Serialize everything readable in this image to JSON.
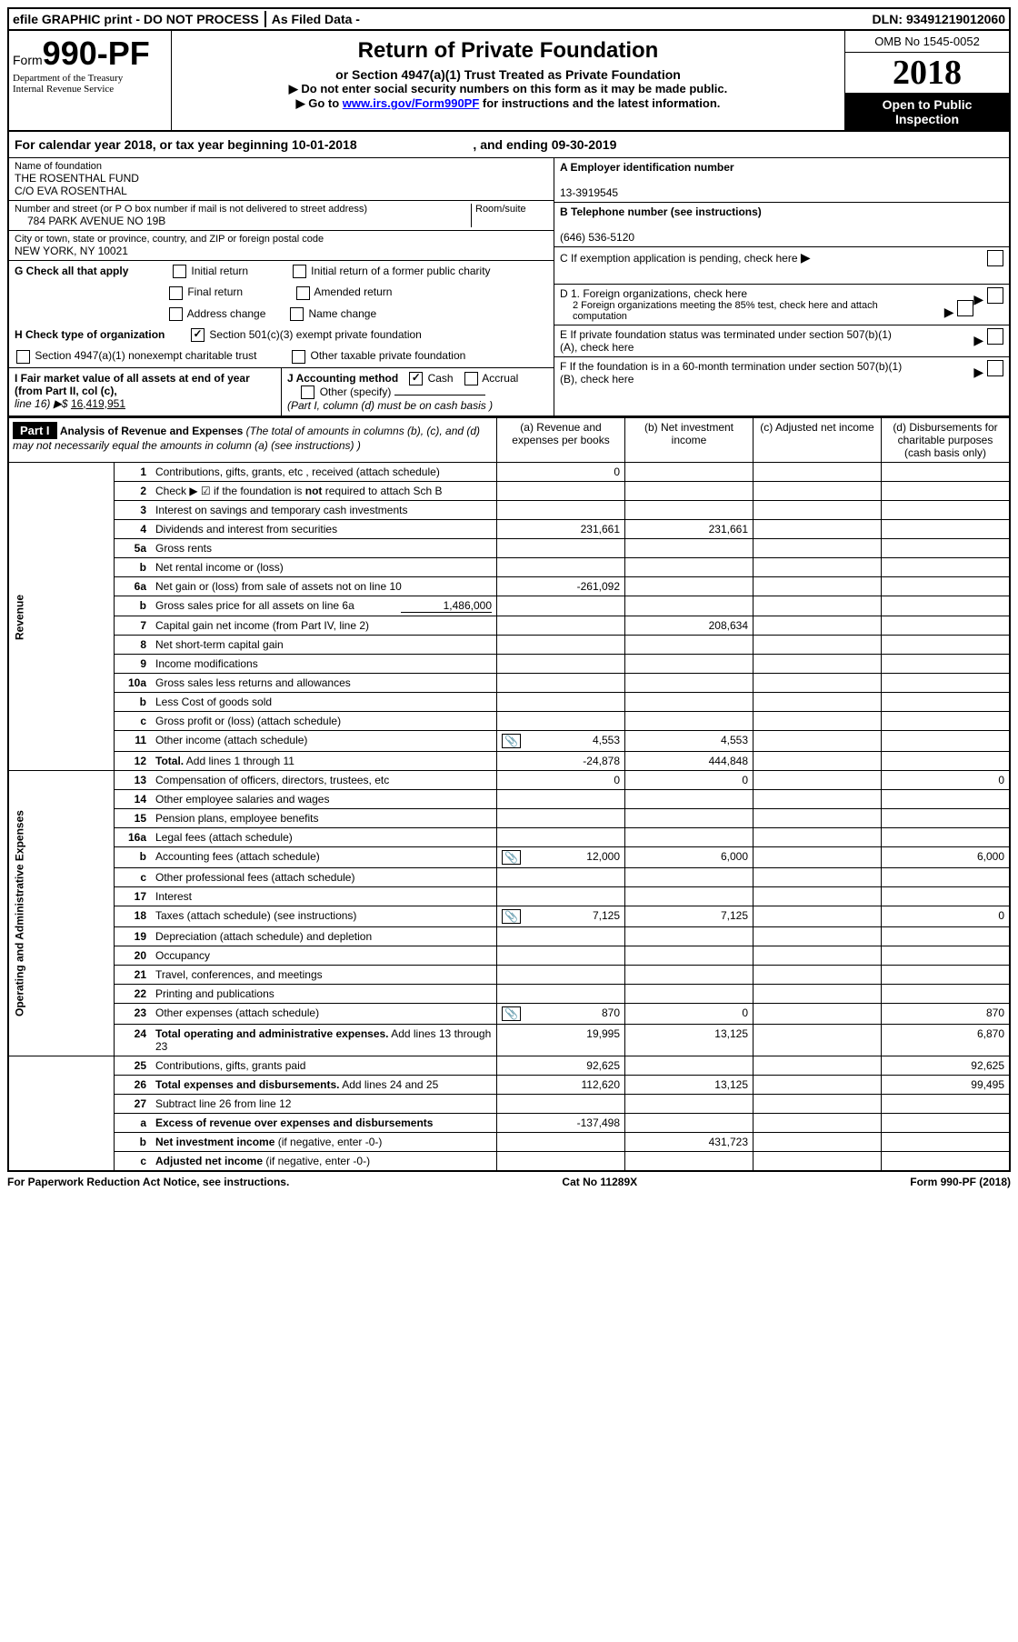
{
  "top": {
    "efile": "efile GRAPHIC print - DO NOT PROCESS",
    "asfiled": "As Filed Data -",
    "dln_label": "DLN:",
    "dln": "93491219012060"
  },
  "header": {
    "form_prefix": "Form",
    "form_number": "990-PF",
    "dept1": "Department of the Treasury",
    "dept2": "Internal Revenue Service",
    "title": "Return of Private Foundation",
    "subtitle": "or Section 4947(a)(1) Trust Treated as Private Foundation",
    "inst1": "▶ Do not enter social security numbers on this form as it may be made public.",
    "inst2_pre": "▶ Go to ",
    "inst2_link": "www.irs.gov/Form990PF",
    "inst2_post": " for instructions and the latest information.",
    "omb": "OMB No 1545-0052",
    "year": "2018",
    "insp1": "Open to Public",
    "insp2": "Inspection"
  },
  "calendar": {
    "text1": "For calendar year 2018, or tax year beginning 10-01-2018",
    "text2": ", and ending 09-30-2019"
  },
  "foundation": {
    "name_label": "Name of foundation",
    "name1": "THE ROSENTHAL FUND",
    "name2": "C/O EVA ROSENTHAL",
    "addr_label": "Number and street (or P O  box number if mail is not delivered to street address)",
    "room_label": "Room/suite",
    "addr": "784 PARK AVENUE NO 19B",
    "city_label": "City or town, state or province, country, and ZIP or foreign postal code",
    "city": "NEW YORK, NY  10021"
  },
  "right_info": {
    "a_label": "A Employer identification number",
    "a_val": "13-3919545",
    "b_label": "B Telephone number (see instructions)",
    "b_val": "(646) 536-5120",
    "c_label": "C  If exemption application is pending, check here",
    "d1": "D 1. Foreign organizations, check here",
    "d2": "2  Foreign organizations meeting the 85% test, check here and attach computation",
    "e": "E  If private foundation status was terminated under section 507(b)(1)(A), check here",
    "f": "F  If the foundation is in a 60-month termination under section 507(b)(1)(B), check here"
  },
  "checks": {
    "g": "G Check all that apply",
    "g1": "Initial return",
    "g2": "Initial return of a former public charity",
    "g3": "Final return",
    "g4": "Amended return",
    "g5": "Address change",
    "g6": "Name change",
    "h": "H Check type of organization",
    "h1": "Section 501(c)(3) exempt private foundation",
    "h2": "Section 4947(a)(1) nonexempt charitable trust",
    "h3": "Other taxable private foundation",
    "i1": "I Fair market value of all assets at end of year (from Part II, col  (c),",
    "i2": "line 16)  ▶$ ",
    "i_val": "16,419,951",
    "j": "J Accounting method",
    "j1": "Cash",
    "j2": "Accrual",
    "j3": "Other (specify)",
    "j_note": "(Part I, column (d) must be on cash basis )"
  },
  "part1": {
    "label": "Part I",
    "title": "Analysis of Revenue and Expenses",
    "note": " (The total of amounts in columns (b), (c), and (d) may not necessarily equal the amounts in column (a) (see instructions) )",
    "col_a": "(a)   Revenue and expenses per books",
    "col_b": "(b)  Net investment income",
    "col_c": "(c)  Adjusted net income",
    "col_d": "(d)  Disbursements for charitable purposes (cash basis only)"
  },
  "rows": [
    {
      "n": "1",
      "d": "Contributions, gifts, grants, etc , received (attach schedule)",
      "a": "0"
    },
    {
      "n": "2",
      "d": "Check  ▶ ☑ if the foundation is <b>not</b> required to attach Sch  B"
    },
    {
      "n": "3",
      "d": "Interest on savings and temporary cash investments"
    },
    {
      "n": "4",
      "d": "Dividends and interest from securities",
      "a": "231,661",
      "b": "231,661"
    },
    {
      "n": "5a",
      "d": "Gross rents"
    },
    {
      "n": "b",
      "d": "Net rental income or (loss)"
    },
    {
      "n": "6a",
      "d": "Net gain or (loss) from sale of assets not on line 10",
      "a": "-261,092"
    },
    {
      "n": "b",
      "d": "Gross sales price for all assets on line 6a",
      "inline": "1,486,000"
    },
    {
      "n": "7",
      "d": "Capital gain net income (from Part IV, line 2)",
      "b": "208,634"
    },
    {
      "n": "8",
      "d": "Net short-term capital gain"
    },
    {
      "n": "9",
      "d": "Income modifications"
    },
    {
      "n": "10a",
      "d": "Gross sales less returns and allowances"
    },
    {
      "n": "b",
      "d": "Less  Cost of goods sold"
    },
    {
      "n": "c",
      "d": "Gross profit or (loss) (attach schedule)"
    },
    {
      "n": "11",
      "d": "Other income (attach schedule)",
      "icon": true,
      "a": "4,553",
      "b": "4,553"
    },
    {
      "n": "12",
      "d": "<b>Total.</b> Add lines 1 through 11",
      "a": "-24,878",
      "b": "444,848"
    },
    {
      "n": "13",
      "d": "Compensation of officers, directors, trustees, etc",
      "a": "0",
      "b": "0",
      "dd": "0"
    },
    {
      "n": "14",
      "d": "Other employee salaries and wages"
    },
    {
      "n": "15",
      "d": "Pension plans, employee benefits"
    },
    {
      "n": "16a",
      "d": "Legal fees (attach schedule)"
    },
    {
      "n": "b",
      "d": "Accounting fees (attach schedule)",
      "icon": true,
      "a": "12,000",
      "b": "6,000",
      "dd": "6,000"
    },
    {
      "n": "c",
      "d": "Other professional fees (attach schedule)"
    },
    {
      "n": "17",
      "d": "Interest"
    },
    {
      "n": "18",
      "d": "Taxes (attach schedule) (see instructions)",
      "icon": true,
      "a": "7,125",
      "b": "7,125",
      "dd": "0"
    },
    {
      "n": "19",
      "d": "Depreciation (attach schedule) and depletion"
    },
    {
      "n": "20",
      "d": "Occupancy"
    },
    {
      "n": "21",
      "d": "Travel, conferences, and meetings"
    },
    {
      "n": "22",
      "d": "Printing and publications"
    },
    {
      "n": "23",
      "d": "Other expenses (attach schedule)",
      "icon": true,
      "a": "870",
      "b": "0",
      "dd": "870"
    },
    {
      "n": "24",
      "d": "<b>Total operating and administrative expenses.</b> Add lines 13 through 23",
      "a": "19,995",
      "b": "13,125",
      "dd": "6,870"
    },
    {
      "n": "25",
      "d": "Contributions, gifts, grants paid",
      "a": "92,625",
      "dd": "92,625"
    },
    {
      "n": "26",
      "d": "<b>Total expenses and disbursements.</b> Add lines 24 and 25",
      "a": "112,620",
      "b": "13,125",
      "dd": "99,495"
    },
    {
      "n": "27",
      "d": "Subtract line 26 from line 12"
    },
    {
      "n": "a",
      "d": "<b>Excess of revenue over expenses and disbursements</b>",
      "a": "-137,498"
    },
    {
      "n": "b",
      "d": "<b>Net investment income</b> (if negative, enter -0-)",
      "b": "431,723"
    },
    {
      "n": "c",
      "d": "<b>Adjusted net income</b> (if negative, enter -0-)"
    }
  ],
  "vlabels": {
    "rev": "Revenue",
    "exp": "Operating and Administrative Expenses"
  },
  "footer": {
    "left": "For Paperwork Reduction Act Notice, see instructions.",
    "mid": "Cat  No  11289X",
    "right": "Form 990-PF (2018)"
  }
}
